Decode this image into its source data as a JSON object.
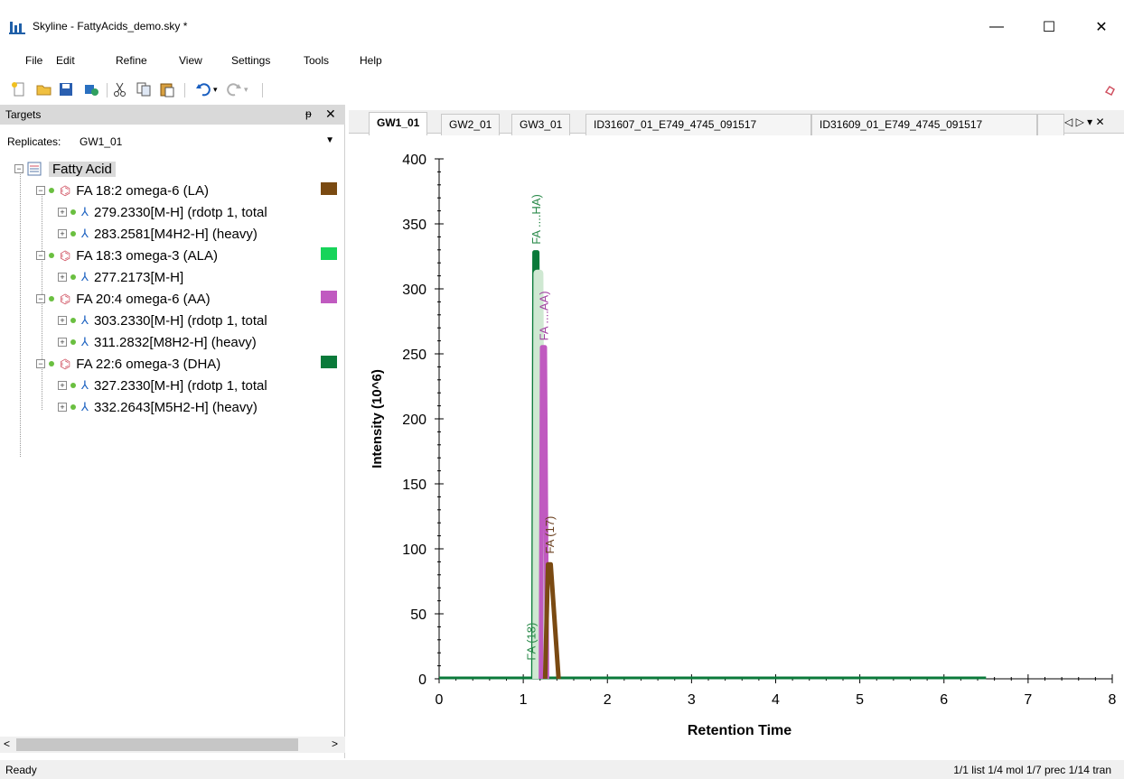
{
  "window": {
    "title": "Skyline - FattyAcids_demo.sky *",
    "minimize": "—",
    "maximize": "☐",
    "close": "✕"
  },
  "menu": [
    "File",
    "Edit",
    "Refine",
    "View",
    "Settings",
    "Tools",
    "Help"
  ],
  "targets": {
    "header": "Targets",
    "pin": "ᵽ",
    "close": "✕",
    "replicates_label": "Replicates:",
    "replicates_value": "GW1_01",
    "tree": {
      "root": "Fatty Acid",
      "molecules": [
        {
          "name": "FA 18:2 omega-6 (LA)",
          "color": "#7a4a12",
          "transitions": [
            "279.2330[M-H] (rdotp 1, total",
            "283.2581[M4H2-H] (heavy)"
          ]
        },
        {
          "name": "FA 18:3 omega-3 (ALA)",
          "color": "#17d45a",
          "transitions": [
            "277.2173[M-H]"
          ]
        },
        {
          "name": "FA 20:4 omega-6 (AA)",
          "color": "#c05ac0",
          "transitions": [
            "303.2330[M-H] (rdotp 1, total",
            "311.2832[M8H2-H] (heavy)"
          ]
        },
        {
          "name": "FA 22:6 omega-3 (DHA)",
          "color": "#0a7a3a",
          "transitions": [
            "327.2330[M-H] (rdotp 1, total",
            "332.2643[M5H2-H] (heavy)"
          ]
        }
      ]
    }
  },
  "tabs": [
    "GW1_01",
    "GW2_01",
    "GW3_01",
    "ID31607_01_E749_4745_091517",
    "ID31609_01_E749_4745_091517"
  ],
  "tab_nav": "◁ ▷ ▾ ✕",
  "chart_data": {
    "type": "line",
    "xlabel": "Retention Time",
    "ylabel": "Intensity (10^6)",
    "xlim": [
      0,
      8
    ],
    "ylim": [
      0,
      400
    ],
    "xticks": [
      0,
      1,
      2,
      3,
      4,
      5,
      6,
      7,
      8
    ],
    "yticks": [
      0,
      50,
      100,
      150,
      200,
      250,
      300,
      350,
      400
    ],
    "series": [
      {
        "name": "FA 22:6 omega-3 (DHA)",
        "color": "#0a7a3a",
        "peak_x": 1.15,
        "peak_y": 328
      },
      {
        "name": "FA 18:3 omega-3 (ALA)",
        "color": "#cfe8d2",
        "peak_x": 1.18,
        "peak_y": 312
      },
      {
        "name": "FA 20:4 omega-6 (AA)",
        "color": "#c05ac0",
        "peak_x": 1.24,
        "peak_y": 255
      },
      {
        "name": "FA 18:2 omega-6 (LA)",
        "color": "#7a4a12",
        "peak_x": 1.31,
        "peak_y": 88
      }
    ],
    "annotations": [
      {
        "text": "FA ....HA)",
        "x": 1.15,
        "y": 330,
        "color": "#2a8a4a"
      },
      {
        "text": "FA ....AA)",
        "x": 1.24,
        "y": 256,
        "color": "#a040a0"
      },
      {
        "text": "FA (17)",
        "x": 1.31,
        "y": 92,
        "color": "#6a4020"
      },
      {
        "text": "FA (18)",
        "x": 1.09,
        "y": 10,
        "color": "#2a8a4a"
      }
    ],
    "baseline_end_x": 6.5
  },
  "status": {
    "left": "Ready",
    "right": "1/1 list  1/4 mol  1/7 prec  1/14 tran"
  }
}
